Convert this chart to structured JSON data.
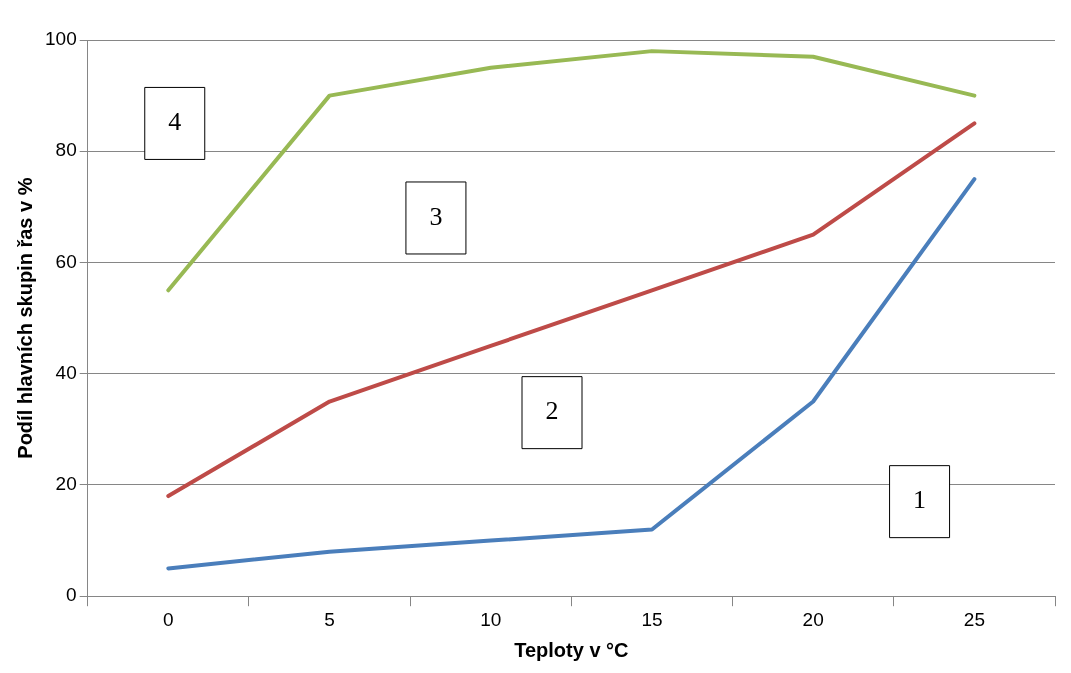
{
  "chart_data": {
    "type": "line",
    "xlabel": "Teploty v °C",
    "ylabel": "Podíl hlavních skupin řas v %",
    "categories": [
      "0",
      "5",
      "10",
      "15",
      "20",
      "25"
    ],
    "ylim": [
      0,
      100
    ],
    "yticks": [
      0,
      20,
      40,
      60,
      80,
      100
    ],
    "grid": "y",
    "legend": false,
    "marker": "none",
    "line_style": "solid",
    "series": [
      {
        "color": "#4a7ebb",
        "values": [
          5,
          8,
          10,
          12,
          35,
          75
        ]
      },
      {
        "color": "#be4b48",
        "values": [
          18,
          35,
          45,
          55,
          65,
          85
        ]
      },
      {
        "color": "#98b954",
        "values": [
          55,
          90,
          95,
          98,
          97,
          90
        ]
      }
    ],
    "annotations": [
      "4",
      "3",
      "2",
      "1"
    ]
  }
}
